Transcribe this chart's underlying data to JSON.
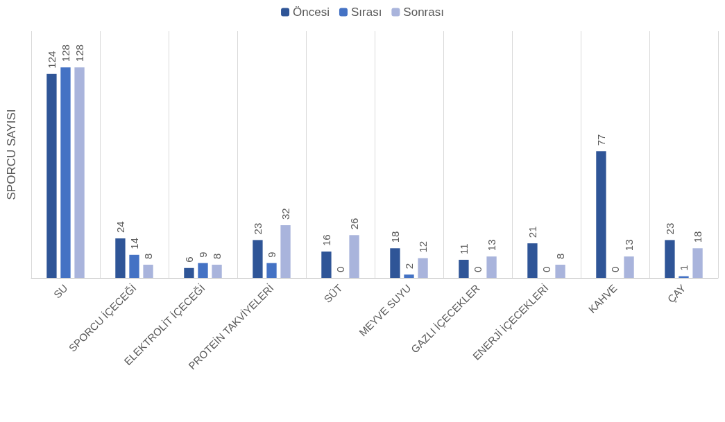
{
  "chart_data": {
    "type": "bar",
    "ylabel": "SPORCU SAYISI",
    "categories": [
      "SU",
      "SPORCU İÇECEĞİ",
      "ELEKTROLİT İÇECEĞİ",
      "PROTEİN TAKVİYELERİ",
      "SÜT",
      "MEYVE SUYU",
      "GAZLI İÇECEKLER",
      "ENERJİ İÇECEKLERİ",
      "KAHVE",
      "ÇAY"
    ],
    "series": [
      {
        "name": "Öncesi",
        "color": "#2f5597",
        "values": [
          124,
          24,
          6,
          23,
          16,
          18,
          11,
          21,
          77,
          23
        ]
      },
      {
        "name": "Sırası",
        "color": "#4472c4",
        "values": [
          128,
          14,
          9,
          9,
          0,
          2,
          0,
          0,
          0,
          1
        ]
      },
      {
        "name": "Sonrası",
        "color": "#a9b4dc",
        "values": [
          128,
          8,
          8,
          32,
          26,
          12,
          13,
          8,
          13,
          18
        ]
      }
    ],
    "data_labels": true,
    "grid": "x",
    "legend": "top"
  }
}
